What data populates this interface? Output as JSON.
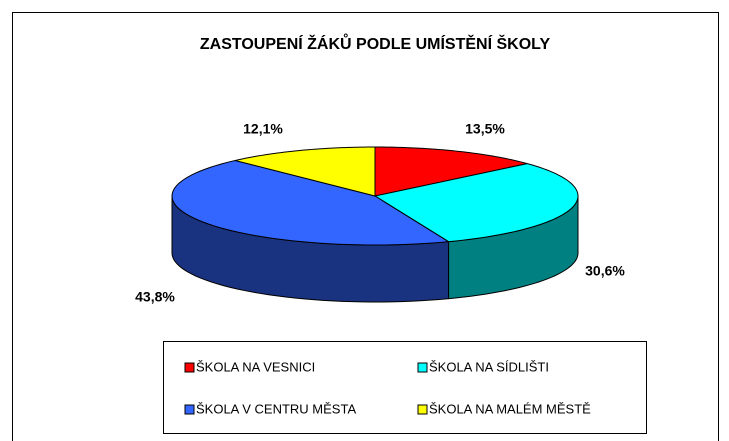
{
  "chart_data": {
    "type": "pie",
    "title": "ZASTOUPENÍ ŽÁKŮ PODLE UMÍSTĚNÍ ŠKOLY",
    "categories": [
      "ŠKOLA NA VESNICI",
      "ŠKOLA NA SÍDLIŠTI",
      "ŠKOLA V CENTRU MĚSTA",
      "ŠKOLA NA MALÉM MĚSTĚ"
    ],
    "values": [
      13.5,
      30.6,
      43.8,
      12.1
    ],
    "value_labels": [
      "13,5%",
      "30,6%",
      "43,8%",
      "12,1%"
    ],
    "colors": [
      "#ff0000",
      "#00ffff",
      "#3366ff",
      "#ffff00"
    ],
    "legend": "bottom"
  }
}
